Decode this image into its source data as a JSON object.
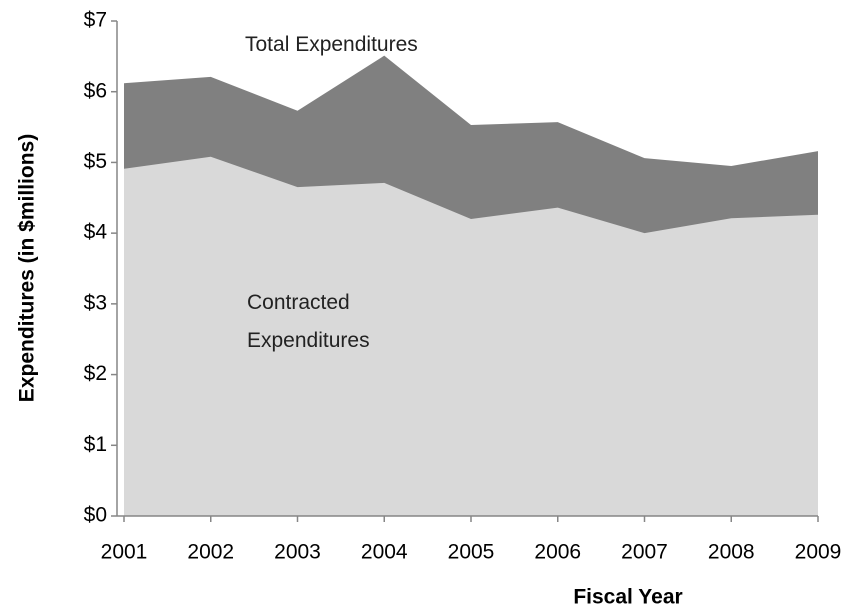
{
  "chart_data": {
    "type": "area",
    "categories": [
      "2001",
      "2002",
      "2003",
      "2004",
      "2005",
      "2006",
      "2007",
      "2008",
      "2009"
    ],
    "series": [
      {
        "name": "Total Expenditures",
        "color": "#808080",
        "values": [
          6.12,
          6.21,
          5.73,
          6.51,
          5.53,
          5.57,
          5.06,
          4.95,
          5.16
        ]
      },
      {
        "name": "Contracted Expenditures",
        "color": "#d9d9d9",
        "values": [
          4.91,
          5.08,
          4.65,
          4.71,
          4.2,
          4.36,
          4.0,
          4.21,
          4.26
        ]
      }
    ],
    "x_label": "Fiscal Year",
    "y_label": "Expenditures (in $millions)",
    "ylim": [
      0,
      7
    ],
    "yticks": [
      {
        "value": 0,
        "label": "$0"
      },
      {
        "value": 1,
        "label": "$1"
      },
      {
        "value": 2,
        "label": "$2"
      },
      {
        "value": 3,
        "label": "$3"
      },
      {
        "value": 4,
        "label": "$4"
      },
      {
        "value": 5,
        "label": "$5"
      },
      {
        "value": 6,
        "label": "$6"
      },
      {
        "value": 7,
        "label": "$7"
      }
    ]
  }
}
